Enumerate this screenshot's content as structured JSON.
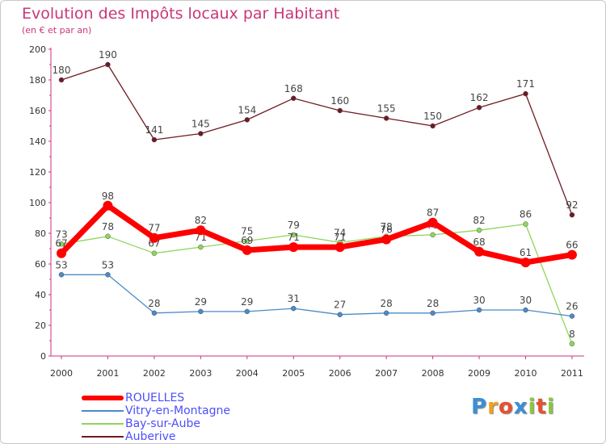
{
  "header": {
    "title": "Evolution des Impôts locaux par Habitant",
    "subtitle": "(en € et par an)"
  },
  "logo": {
    "letters": [
      "P",
      "r",
      "o",
      "x",
      "i",
      "t",
      "i"
    ],
    "colors": [
      "#3b8fd6",
      "#f0a21b",
      "#e8502e",
      "#3b8fd6",
      "#8cc63f",
      "#e8502e",
      "#8cc63f"
    ]
  },
  "chart_data": {
    "type": "line",
    "title": "Evolution des Impôts locaux par Habitant",
    "subtitle": "(en € et par an)",
    "xlabel": "",
    "ylabel": "",
    "categories": [
      "2000",
      "2001",
      "2002",
      "2003",
      "2004",
      "2005",
      "2006",
      "2007",
      "2008",
      "2009",
      "2010",
      "2011"
    ],
    "ylim": [
      0,
      200
    ],
    "yticks": [
      0,
      20,
      40,
      60,
      80,
      100,
      120,
      140,
      160,
      180,
      200
    ],
    "grid": false,
    "legend_position": "bottom-left",
    "series": [
      {
        "name": "Auberive",
        "color": "#6e1a22",
        "values": [
          180,
          190,
          141,
          145,
          154,
          168,
          160,
          155,
          150,
          162,
          171,
          92
        ],
        "labels": [
          "180",
          "190",
          "141",
          "145",
          "154",
          "168",
          "160",
          "155",
          "150",
          "162",
          "171",
          "92"
        ]
      },
      {
        "name": "Bay-sur-Aube",
        "color": "#8ed65a",
        "values": [
          73,
          78,
          67,
          71,
          75,
          79,
          74,
          78,
          79,
          82,
          86,
          8
        ],
        "labels": [
          "73",
          "78",
          "67",
          "71",
          "75",
          "79",
          "74",
          "78",
          "79",
          "82",
          "86",
          "8"
        ]
      },
      {
        "name": "Vitry-en-Montagne",
        "color": "#4a8ac8",
        "values": [
          53,
          53,
          28,
          29,
          29,
          31,
          27,
          28,
          28,
          30,
          30,
          26
        ],
        "labels": [
          "53",
          "53",
          "28",
          "29",
          "29",
          "31",
          "27",
          "28",
          "28",
          "30",
          "30",
          "26"
        ]
      },
      {
        "name": "ROUELLES",
        "color": "#ff0000",
        "values": [
          67,
          98,
          77,
          82,
          69,
          71,
          71,
          76,
          87,
          68,
          61,
          66
        ],
        "labels": [
          "67",
          "98",
          "77",
          "82",
          "69",
          "71",
          "71",
          "76",
          "87",
          "68",
          "61",
          "66"
        ]
      }
    ],
    "legend": [
      "ROUELLES",
      "Vitry-en-Montagne",
      "Bay-sur-Aube",
      "Auberive"
    ]
  }
}
